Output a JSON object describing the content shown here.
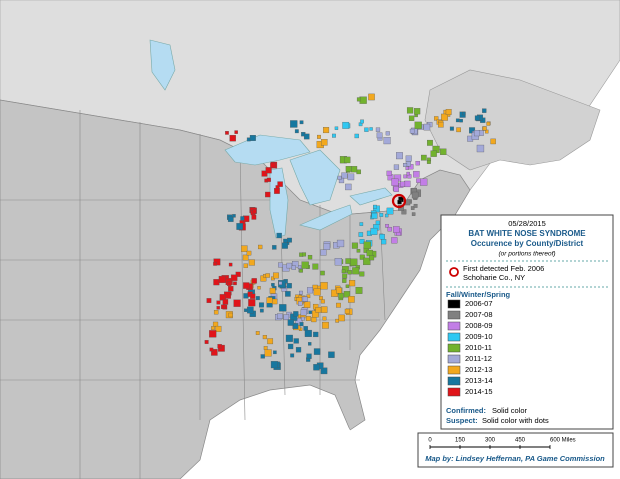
{
  "date": "05/28/2015",
  "title": "BAT WHITE NOSE SYNDROME",
  "subtitle": "Occurence by County/District",
  "note": "(or portions thereof)",
  "first_detected": {
    "line1": "First detected Feb. 2006",
    "line2": "Schoharie Co., NY"
  },
  "legend": {
    "title": "Fall/Winter/Spring",
    "items": [
      {
        "label": "2006-07",
        "color": "#000000"
      },
      {
        "label": "2007-08",
        "color": "#808080"
      },
      {
        "label": "2008-09",
        "color": "#c27ee6"
      },
      {
        "label": "2009-10",
        "color": "#2ec8f2"
      },
      {
        "label": "2010-11",
        "color": "#72b22e"
      },
      {
        "label": "2011-12",
        "color": "#a3a9d9"
      },
      {
        "label": "2012-13",
        "color": "#f2a81e"
      },
      {
        "label": "2013-14",
        "color": "#17779f"
      },
      {
        "label": "2014-15",
        "color": "#e0141a"
      }
    ]
  },
  "confirmed": {
    "label": "Confirmed:",
    "text": "Solid color"
  },
  "suspect": {
    "label": "Suspect:",
    "text": "Solid color with dots"
  },
  "scale": {
    "ticks": [
      "0",
      "150",
      "300",
      "450",
      "600 Miles"
    ]
  },
  "credit": "Map by: Lindsey Heffernan, PA Game Commission"
}
